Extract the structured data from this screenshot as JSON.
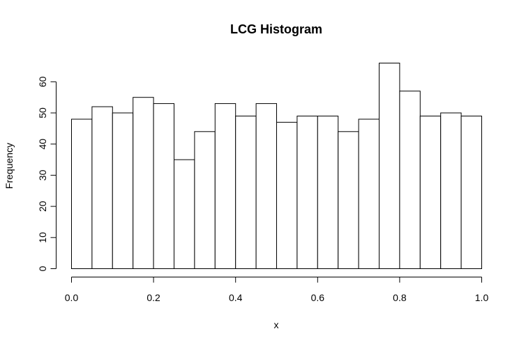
{
  "chart_data": {
    "type": "bar",
    "title": "LCG Histogram",
    "xlabel": "x",
    "ylabel": "Frequency",
    "bin_edges": [
      0.0,
      0.05,
      0.1,
      0.15,
      0.2,
      0.25,
      0.3,
      0.35,
      0.4,
      0.45,
      0.5,
      0.55,
      0.6,
      0.65,
      0.7,
      0.75,
      0.8,
      0.85,
      0.9,
      0.95,
      1.0
    ],
    "values": [
      48,
      52,
      50,
      55,
      53,
      35,
      44,
      53,
      49,
      53,
      47,
      49,
      49,
      44,
      48,
      66,
      57,
      49,
      50,
      49
    ],
    "xlim": [
      0,
      1
    ],
    "ylim": [
      0,
      66
    ],
    "x_ticks": [
      0.0,
      0.2,
      0.4,
      0.6,
      0.8,
      1.0
    ],
    "x_tick_labels": [
      "0.0",
      "0.2",
      "0.4",
      "0.6",
      "0.8",
      "1.0"
    ],
    "y_ticks": [
      0,
      10,
      20,
      30,
      40,
      50,
      60
    ],
    "y_tick_labels": [
      "0",
      "10",
      "20",
      "30",
      "40",
      "50",
      "60"
    ],
    "grid": false,
    "legend": "none"
  }
}
